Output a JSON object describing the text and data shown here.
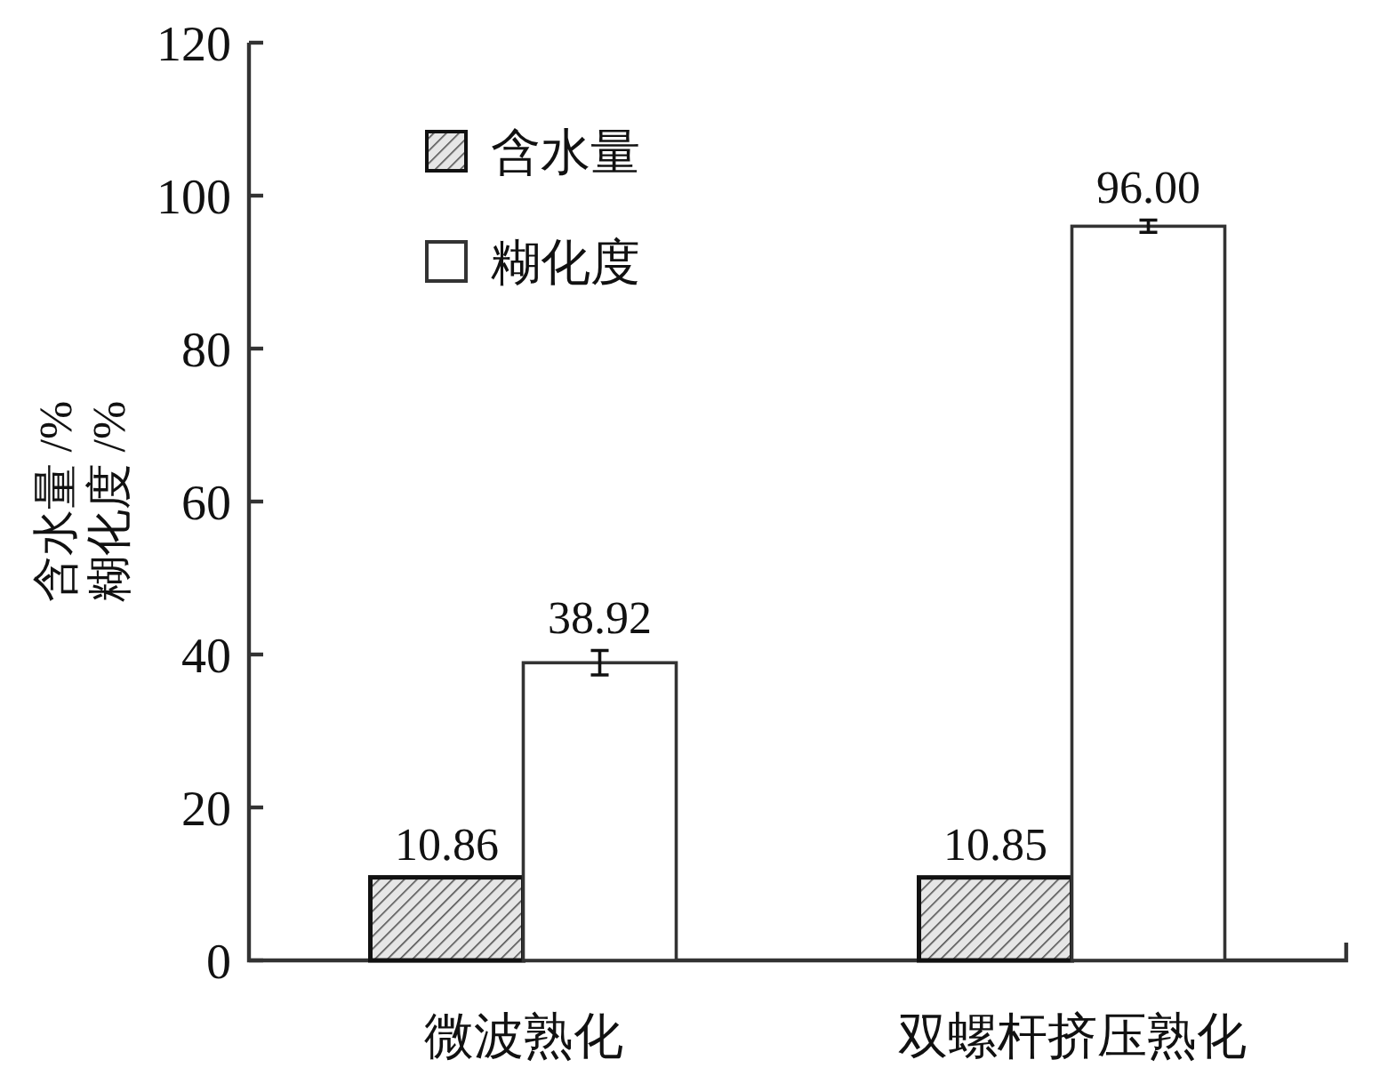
{
  "chart_data": {
    "type": "bar",
    "ylabel": "含水量 /%\n糊化度 /%",
    "categories": [
      "微波熟化",
      "双螺杆挤压熟化"
    ],
    "series": [
      {
        "name": "含水量",
        "color": "#111111",
        "values": [
          10.86,
          10.85
        ],
        "value_labels": [
          "10.86",
          "10.85"
        ]
      },
      {
        "name": "糊化度",
        "color": "#ffffff",
        "values": [
          38.92,
          96.0
        ],
        "value_labels": [
          "38.92",
          "96.00"
        ],
        "errors": [
          1.6,
          0.8
        ]
      }
    ],
    "ylim": [
      0,
      120
    ],
    "yticks": [
      0,
      20,
      40,
      60,
      80,
      100,
      120
    ],
    "legend": "top left",
    "grid": false
  }
}
